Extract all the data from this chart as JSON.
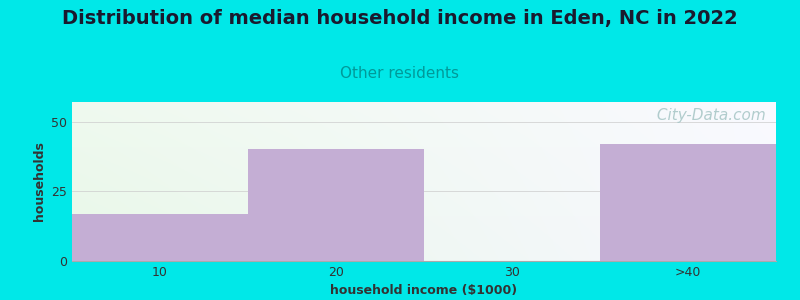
{
  "title": "Distribution of median household income in Eden, NC in 2022",
  "subtitle": "Other residents",
  "categories": [
    "10",
    "20",
    "30",
    ">40"
  ],
  "values": [
    17,
    40,
    0,
    42
  ],
  "bar_color": "#c4aed4",
  "background_outer": "#00e8e8",
  "background_inner_left": "#e8f8e8",
  "background_inner_right": "#f8f8ff",
  "background_top": "#f0f0f8",
  "xlabel": "household income ($1000)",
  "ylabel": "households",
  "ylim": [
    0,
    57
  ],
  "yticks": [
    0,
    25,
    50
  ],
  "title_fontsize": 14,
  "subtitle_fontsize": 11,
  "subtitle_color": "#009999",
  "axis_label_fontsize": 9,
  "tick_fontsize": 9,
  "watermark": " City-Data.com",
  "watermark_color": "#aac8c8",
  "watermark_fontsize": 11
}
